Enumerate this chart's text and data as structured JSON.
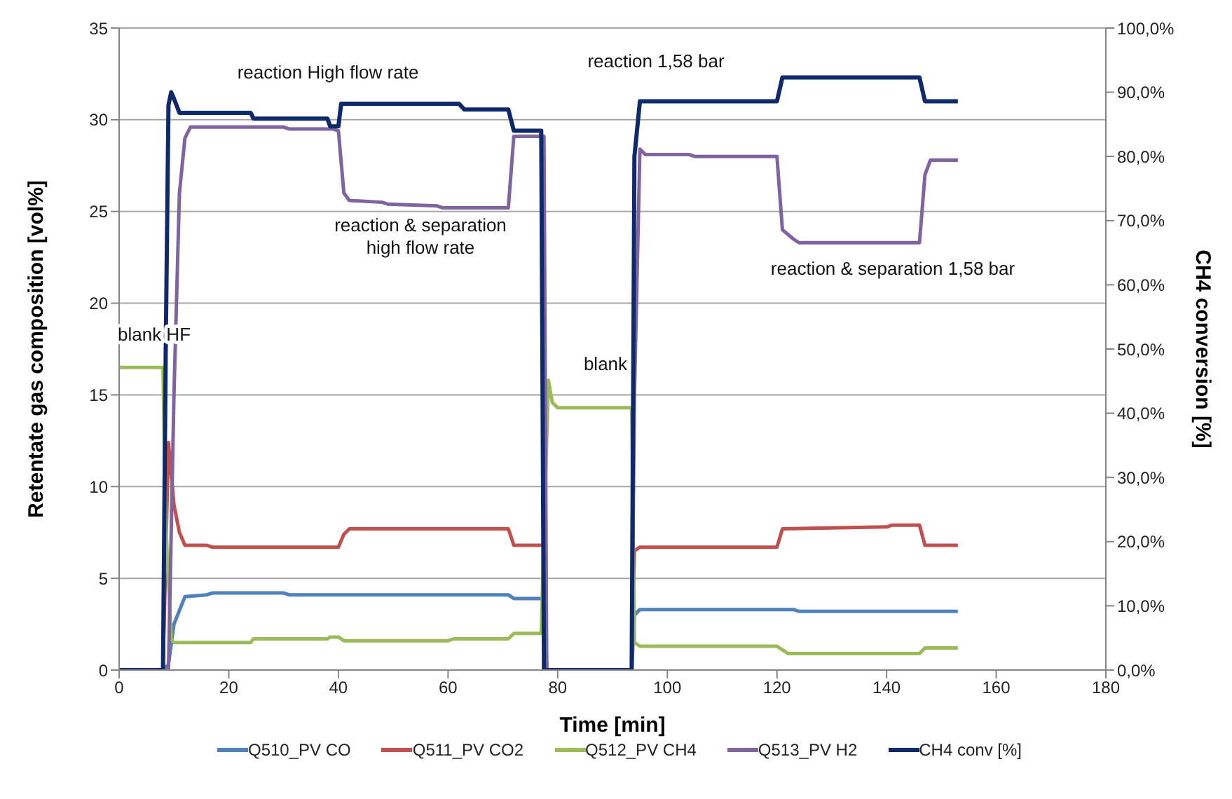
{
  "chart_data": {
    "type": "line",
    "xlabel": "Time [min]",
    "ylabel": "Retentate gas composition [vol%]",
    "y2label": "CH4 conversion [%]",
    "xlim": [
      0,
      180
    ],
    "xticks": [
      0,
      20,
      40,
      60,
      80,
      100,
      120,
      140,
      160,
      180
    ],
    "ylim": [
      0,
      35
    ],
    "yticks": [
      0,
      5,
      10,
      15,
      20,
      25,
      30,
      35
    ],
    "y2lim": [
      0,
      100
    ],
    "y2ticks": [
      {
        "value": 0,
        "label": "0,0%"
      },
      {
        "value": 10,
        "label": "10,0%"
      },
      {
        "value": 20,
        "label": "20,0%"
      },
      {
        "value": 30,
        "label": "30,0%"
      },
      {
        "value": 40,
        "label": "40,0%"
      },
      {
        "value": 50,
        "label": "50,0%"
      },
      {
        "value": 60,
        "label": "60,0%"
      },
      {
        "value": 70,
        "label": "70,0%"
      },
      {
        "value": 80,
        "label": "80,0%"
      },
      {
        "value": 90,
        "label": "90,0%"
      },
      {
        "value": 100,
        "label": "100,0%"
      }
    ],
    "grid": "y",
    "legend": "bottom",
    "marker": "none",
    "line_style": "solid",
    "series": [
      {
        "name": "Q510_PV CO",
        "color": "#4f81bd",
        "x": [
          0,
          8,
          9,
          10,
          12,
          16,
          17,
          30,
          31,
          71,
          72,
          77,
          77.5,
          78,
          93.5,
          94,
          95,
          123,
          124,
          153
        ],
        "values": [
          0,
          0,
          0.3,
          2.5,
          4.0,
          4.1,
          4.2,
          4.2,
          4.1,
          4.1,
          3.9,
          3.9,
          3.9,
          0,
          0,
          3.0,
          3.3,
          3.3,
          3.2,
          3.2
        ]
      },
      {
        "name": "Q511_PV CO2",
        "color": "#c0504d",
        "x": [
          0,
          8,
          9,
          10,
          11,
          12,
          16,
          17,
          40,
          41,
          42,
          71,
          72,
          77,
          77.5,
          78,
          93.5,
          94,
          95,
          96,
          120,
          121,
          140,
          141,
          146,
          147,
          153
        ],
        "values": [
          0,
          0,
          12.4,
          9,
          7.5,
          6.8,
          6.8,
          6.7,
          6.7,
          7.4,
          7.7,
          7.7,
          6.8,
          6.8,
          6.8,
          0,
          0,
          6.5,
          6.7,
          6.7,
          6.7,
          7.7,
          7.8,
          7.9,
          7.9,
          6.8,
          6.8
        ]
      },
      {
        "name": "Q512_PV CH4",
        "color": "#9bbb59",
        "x": [
          0,
          8,
          8.5,
          9.5,
          10,
          24,
          24.5,
          38,
          38.5,
          40,
          41,
          60,
          61,
          71,
          72,
          77,
          78.3,
          79,
          80,
          93.5,
          94,
          95,
          120,
          122,
          146,
          147,
          153
        ],
        "values": [
          16.5,
          16.5,
          8,
          1.7,
          1.5,
          1.5,
          1.7,
          1.7,
          1.8,
          1.8,
          1.6,
          1.6,
          1.7,
          1.7,
          2.0,
          2.0,
          15.8,
          14.6,
          14.3,
          14.3,
          1.5,
          1.3,
          1.3,
          0.9,
          0.9,
          1.2,
          1.2
        ]
      },
      {
        "name": "Q513_PV H2",
        "color": "#8064a2",
        "x": [
          0,
          9,
          10,
          11,
          12,
          13,
          30,
          31,
          39,
          40,
          41,
          42,
          48,
          49,
          58,
          59,
          71,
          72,
          77,
          77.5,
          78,
          93.5,
          94,
          95,
          96,
          104,
          105,
          120,
          121,
          123,
          124,
          146,
          147,
          148,
          153
        ],
        "values": [
          0,
          0,
          15,
          26,
          29,
          29.6,
          29.6,
          29.5,
          29.5,
          29.4,
          26,
          25.6,
          25.5,
          25.4,
          25.3,
          25.2,
          25.2,
          29.1,
          29.1,
          29.1,
          0,
          0,
          15,
          28.4,
          28.1,
          28.1,
          28.0,
          28.0,
          24,
          23.5,
          23.3,
          23.3,
          27,
          27.8,
          27.8
        ]
      },
      {
        "name": "CH4 conv [%]",
        "color": "#0f2a6b",
        "axis": "y2",
        "x": [
          0,
          8,
          8.5,
          9,
          9.5,
          10,
          11,
          24,
          24.5,
          38,
          38.5,
          40,
          40.5,
          62,
          63,
          71,
          72,
          77,
          77.5,
          93.5,
          94,
          95,
          120,
          121,
          146,
          147,
          153
        ],
        "values": [
          0,
          0,
          50,
          88,
          90,
          89,
          86.8,
          86.8,
          85.9,
          85.9,
          84.7,
          84.7,
          88.2,
          88.2,
          87.3,
          87.3,
          84.0,
          84.0,
          0,
          0,
          80,
          88.6,
          88.6,
          92.3,
          92.3,
          88.6,
          88.6
        ]
      }
    ],
    "annotations": [
      "reaction High flow rate",
      "reaction & separation\nhigh flow rate",
      "blank HF",
      "blank",
      "reaction 1,58 bar",
      "reaction & separation 1,58 bar"
    ]
  }
}
